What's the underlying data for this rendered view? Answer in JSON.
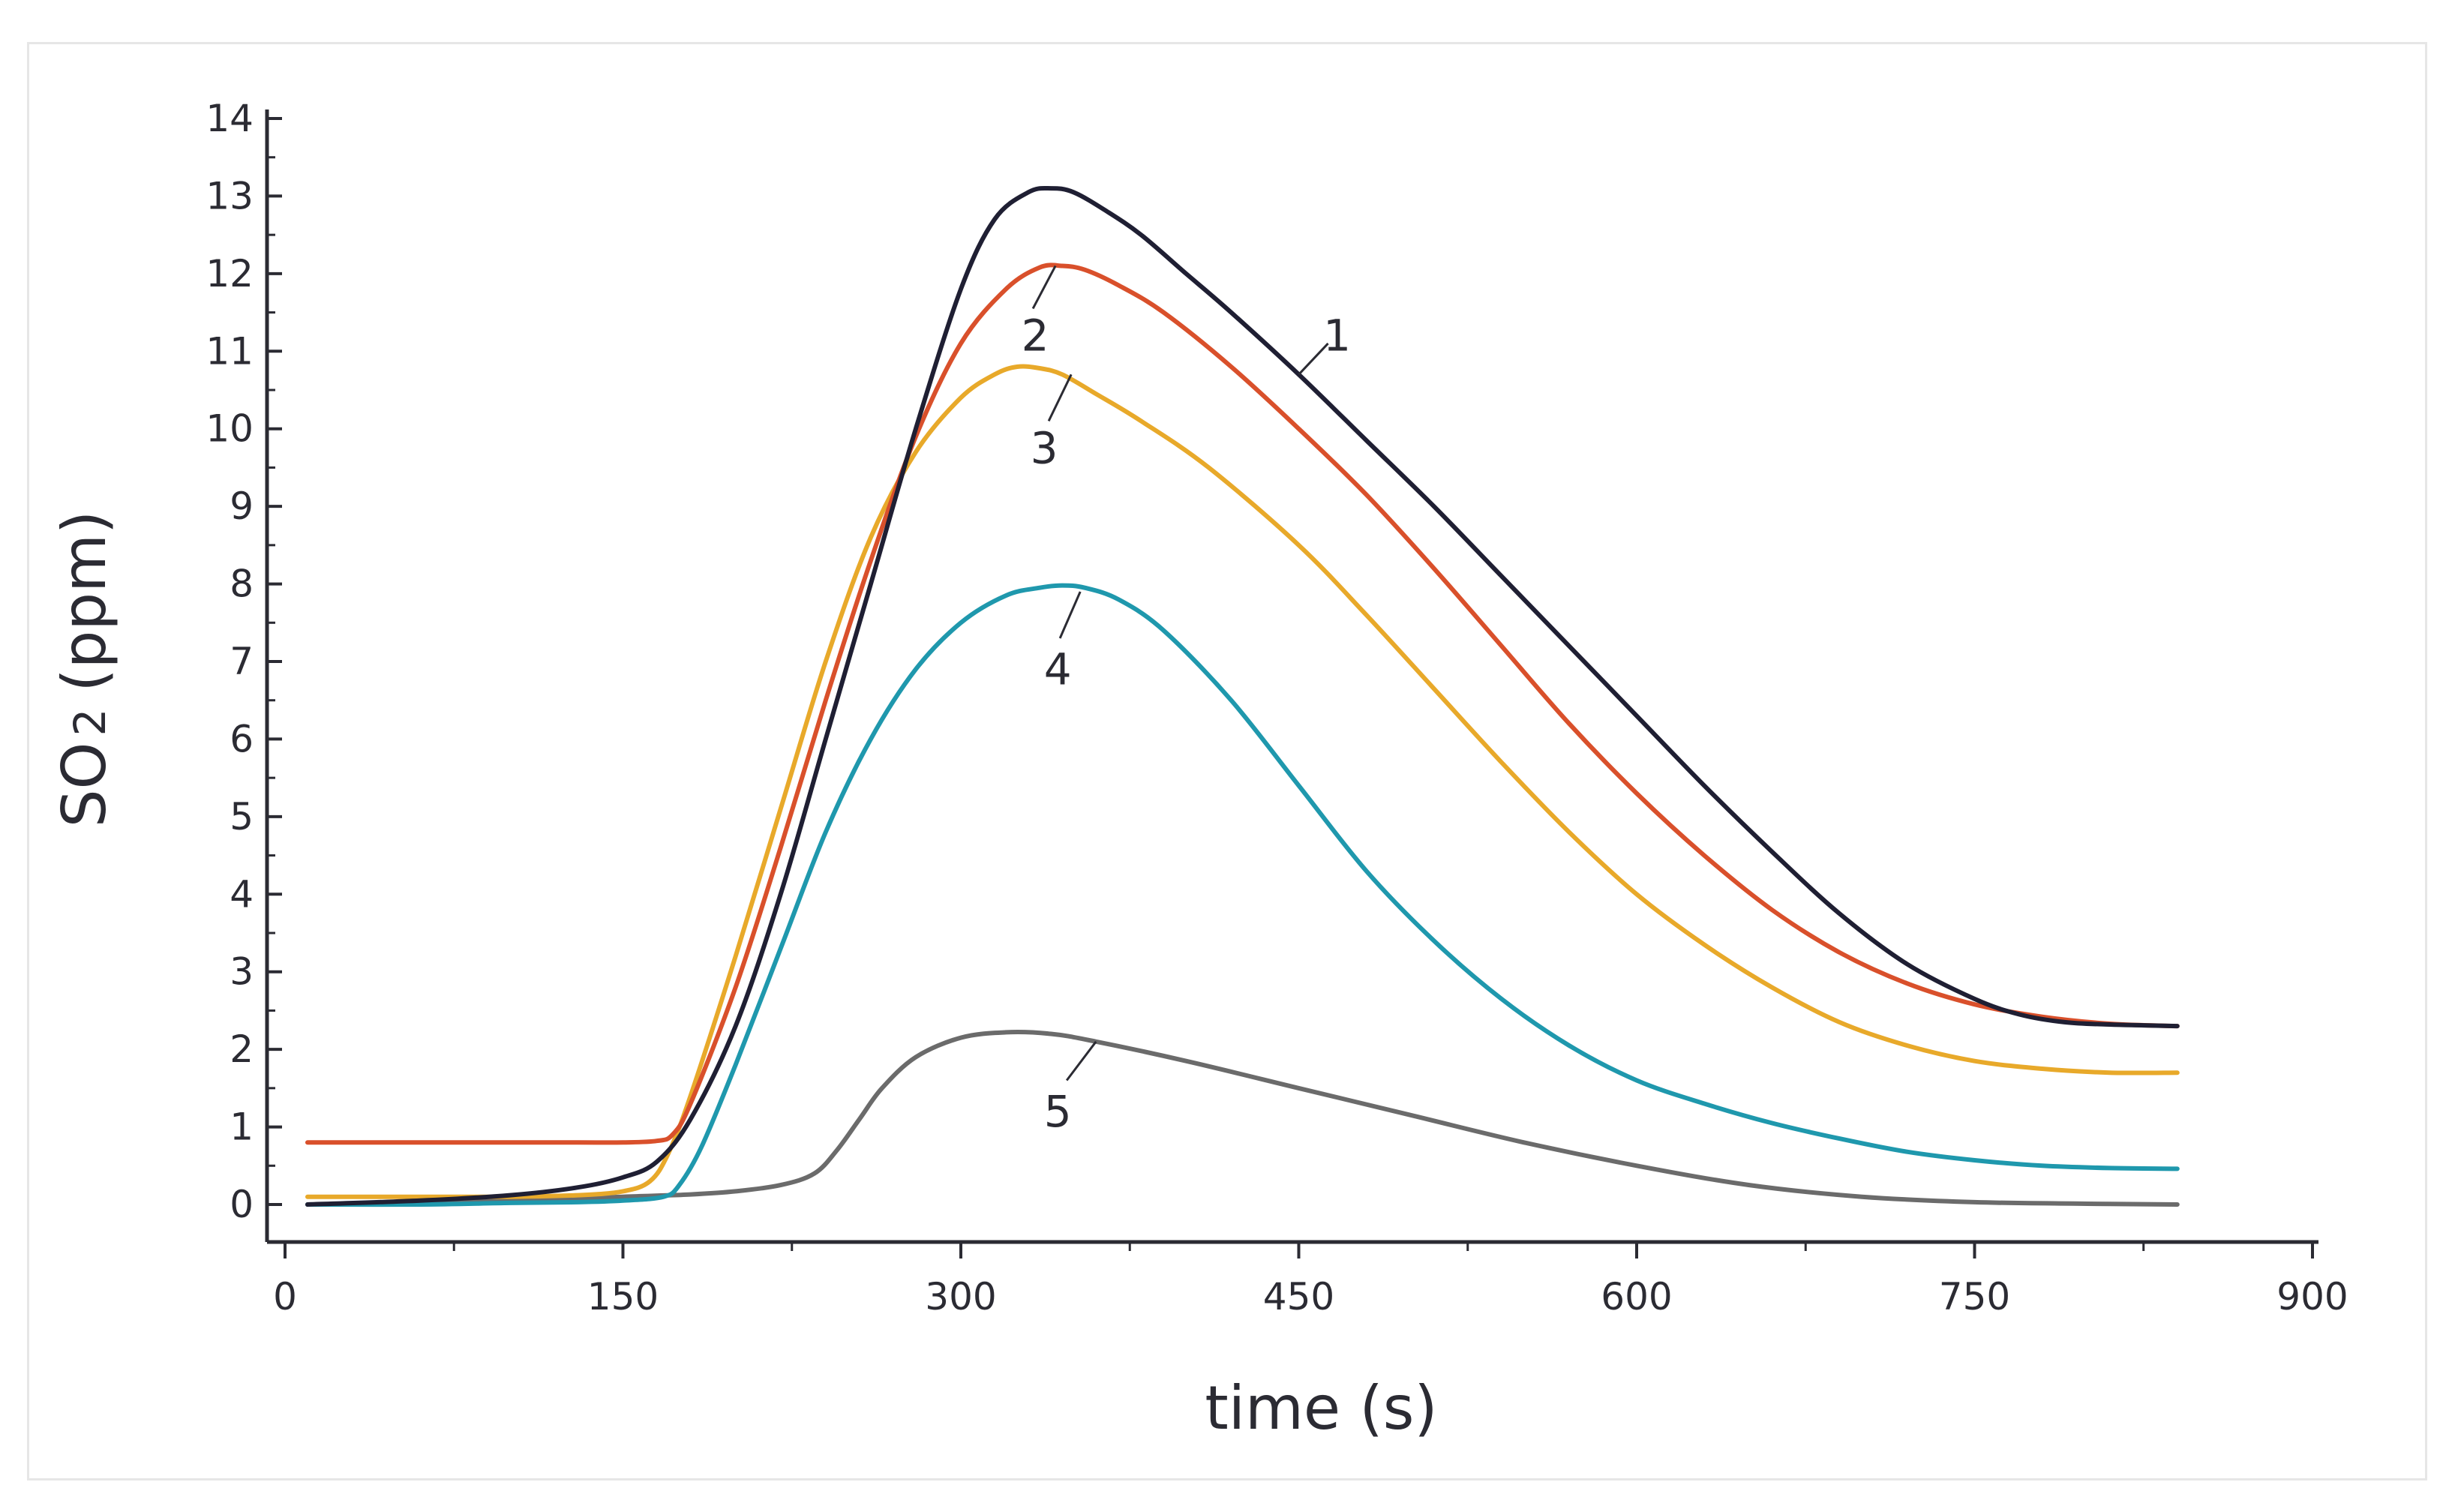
{
  "chart_data": {
    "type": "line",
    "title": "",
    "xlabel": "time (s)",
    "ylabel_main": "SO",
    "ylabel_sub": "2",
    "ylabel_unit": "(ppm)",
    "xlim": [
      0,
      900
    ],
    "ylim": [
      0,
      14
    ],
    "x_ticks": [
      0,
      150,
      300,
      450,
      600,
      750,
      900
    ],
    "x_tick_labels": [
      "0",
      "150",
      "300",
      "450",
      "600",
      "750",
      "900"
    ],
    "y_ticks": [
      0,
      1,
      2,
      3,
      4,
      5,
      6,
      7,
      8,
      9,
      10,
      11,
      12,
      13,
      14
    ],
    "y_tick_labels": [
      "0",
      "1",
      "2",
      "3",
      "4",
      "5",
      "6",
      "7",
      "8",
      "9",
      "10",
      "11",
      "12",
      "13",
      "14"
    ],
    "grid": false,
    "series": [
      {
        "name": "1",
        "color": "#1f1f33",
        "x": [
          10,
          60,
          100,
          130,
          150,
          165,
          180,
          200,
          220,
          240,
          260,
          280,
          300,
          315,
          330,
          340,
          350,
          365,
          380,
          400,
          420,
          450,
          480,
          510,
          540,
          570,
          600,
          630,
          660,
          690,
          720,
          750,
          770,
          790,
          810,
          825,
          840
        ],
        "values": [
          0.0,
          0.05,
          0.12,
          0.22,
          0.35,
          0.55,
          1.1,
          2.3,
          4.0,
          6.0,
          8.0,
          10.0,
          11.8,
          12.7,
          13.05,
          13.1,
          13.05,
          12.8,
          12.5,
          12.0,
          11.5,
          10.7,
          9.85,
          9.0,
          8.1,
          7.2,
          6.3,
          5.4,
          4.55,
          3.75,
          3.1,
          2.65,
          2.45,
          2.35,
          2.32,
          2.31,
          2.3
        ]
      },
      {
        "name": "2",
        "color": "#d9502b",
        "x": [
          10,
          60,
          100,
          130,
          150,
          165,
          172,
          180,
          200,
          220,
          240,
          260,
          280,
          300,
          320,
          335,
          345,
          355,
          370,
          390,
          420,
          450,
          480,
          510,
          540,
          570,
          600,
          630,
          660,
          690,
          720,
          750,
          780,
          810,
          840
        ],
        "values": [
          0.8,
          0.8,
          0.8,
          0.8,
          0.8,
          0.82,
          0.9,
          1.3,
          2.8,
          4.6,
          6.5,
          8.3,
          9.9,
          11.1,
          11.8,
          12.08,
          12.1,
          12.05,
          11.85,
          11.5,
          10.8,
          10.0,
          9.15,
          8.2,
          7.2,
          6.2,
          5.3,
          4.5,
          3.8,
          3.25,
          2.85,
          2.58,
          2.42,
          2.33,
          2.3
        ]
      },
      {
        "name": "3",
        "color": "#e8a92a",
        "x": [
          10,
          60,
          100,
          130,
          150,
          162,
          170,
          180,
          200,
          220,
          240,
          260,
          280,
          300,
          315,
          325,
          335,
          345,
          360,
          380,
          410,
          450,
          480,
          510,
          540,
          570,
          600,
          630,
          660,
          690,
          720,
          750,
          780,
          810,
          840
        ],
        "values": [
          0.1,
          0.1,
          0.1,
          0.12,
          0.17,
          0.3,
          0.65,
          1.4,
          3.2,
          5.1,
          7.0,
          8.6,
          9.7,
          10.4,
          10.7,
          10.8,
          10.78,
          10.7,
          10.45,
          10.1,
          9.5,
          8.5,
          7.6,
          6.65,
          5.7,
          4.8,
          4.0,
          3.35,
          2.8,
          2.35,
          2.05,
          1.85,
          1.75,
          1.7,
          1.7
        ]
      },
      {
        "name": "4",
        "color": "#1f98ad",
        "x": [
          10,
          60,
          100,
          130,
          150,
          168,
          175,
          185,
          200,
          220,
          240,
          260,
          280,
          300,
          320,
          335,
          345,
          355,
          370,
          390,
          420,
          450,
          480,
          510,
          540,
          570,
          600,
          630,
          660,
          690,
          720,
          750,
          780,
          810,
          840
        ],
        "values": [
          0.0,
          0.0,
          0.02,
          0.03,
          0.05,
          0.1,
          0.25,
          0.75,
          1.8,
          3.3,
          4.8,
          6.0,
          6.9,
          7.5,
          7.85,
          7.95,
          7.98,
          7.95,
          7.8,
          7.4,
          6.5,
          5.4,
          4.3,
          3.4,
          2.65,
          2.05,
          1.6,
          1.3,
          1.05,
          0.85,
          0.68,
          0.57,
          0.5,
          0.47,
          0.46
        ]
      },
      {
        "name": "5",
        "color": "#6b6b6b",
        "x": [
          10,
          60,
          100,
          150,
          180,
          200,
          220,
          235,
          245,
          255,
          265,
          280,
          300,
          320,
          340,
          360,
          400,
          450,
          500,
          550,
          600,
          650,
          700,
          750,
          800,
          840
        ],
        "values": [
          0.0,
          0.02,
          0.05,
          0.1,
          0.13,
          0.17,
          0.25,
          0.4,
          0.7,
          1.1,
          1.5,
          1.9,
          2.15,
          2.22,
          2.2,
          2.1,
          1.85,
          1.5,
          1.15,
          0.8,
          0.5,
          0.25,
          0.1,
          0.03,
          0.01,
          0.0
        ]
      }
    ],
    "curve_labels": [
      {
        "text": "1",
        "x": 467,
        "y": 11.2,
        "lx1": 450,
        "ly1": 10.7,
        "lx2": 463,
        "ly2": 11.1
      },
      {
        "text": "2",
        "x": 333,
        "y": 11.2,
        "lx1": 342,
        "ly1": 12.1,
        "lx2": 332,
        "ly2": 11.55
      },
      {
        "text": "3",
        "x": 337,
        "y": 9.75,
        "lx1": 349,
        "ly1": 10.7,
        "lx2": 339,
        "ly2": 10.1
      },
      {
        "text": "4",
        "x": 343,
        "y": 6.9,
        "lx1": 353,
        "ly1": 7.9,
        "lx2": 344,
        "ly2": 7.3
      },
      {
        "text": "5",
        "x": 343,
        "y": 1.2,
        "lx1": 360,
        "ly1": 2.1,
        "lx2": 347,
        "ly2": 1.6
      }
    ]
  }
}
